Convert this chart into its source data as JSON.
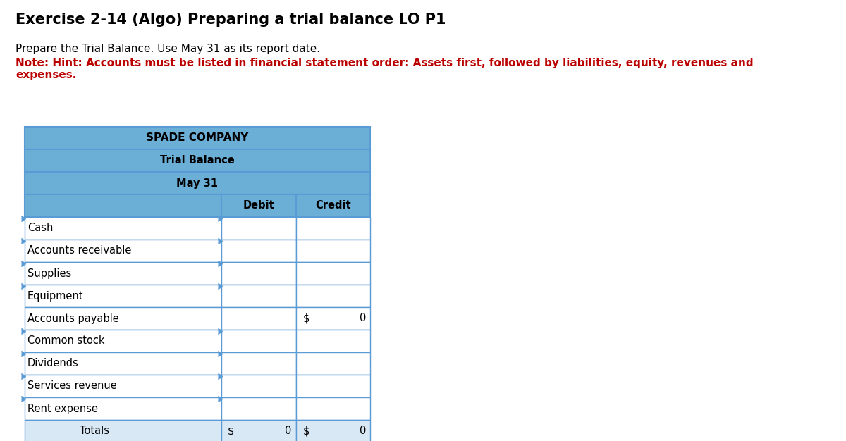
{
  "title": "Exercise 2-14 (Algo) Preparing a trial balance LO P1",
  "subtitle_black": "Prepare the Trial Balance. Use May 31 as its report date.",
  "subtitle_red": "Note: Hint: Accounts must be listed in financial statement order: Assets first, followed by liabilities, equity, revenues and\nexpenses.",
  "company": "SPADE COMPANY",
  "report_title": "Trial Balance",
  "report_date": "May 31",
  "col_headers": [
    "Debit",
    "Credit"
  ],
  "rows": [
    {
      "label": "Cash",
      "has_debit_tri": true,
      "has_credit_tri": true,
      "credit_val": null
    },
    {
      "label": "Accounts receivable",
      "has_debit_tri": true,
      "has_credit_tri": true,
      "credit_val": null
    },
    {
      "label": "Supplies",
      "has_debit_tri": true,
      "has_credit_tri": true,
      "credit_val": null
    },
    {
      "label": "Equipment",
      "has_debit_tri": true,
      "has_credit_tri": true,
      "credit_val": null
    },
    {
      "label": "Accounts payable",
      "has_debit_tri": false,
      "has_credit_tri": false,
      "credit_val": "0"
    },
    {
      "label": "Common stock",
      "has_debit_tri": true,
      "has_credit_tri": true,
      "credit_val": null
    },
    {
      "label": "Dividends",
      "has_debit_tri": true,
      "has_credit_tri": true,
      "credit_val": null
    },
    {
      "label": "Services revenue",
      "has_debit_tri": true,
      "has_credit_tri": true,
      "credit_val": null
    },
    {
      "label": "Rent expense",
      "has_debit_tri": true,
      "has_credit_tri": true,
      "credit_val": null
    }
  ],
  "total_debit": "0",
  "total_credit": "0",
  "header_bg": "#6BAED6",
  "border_color": "#5B9BD5",
  "white": "#FFFFFF",
  "totals_bg": "#D9E8F5",
  "text_black": "#000000",
  "text_red": "#BB0000",
  "title_fs": 15,
  "note_fs": 11,
  "table_fs": 10.5,
  "fig_w": 12.0,
  "fig_h": 6.26,
  "dpi": 100
}
